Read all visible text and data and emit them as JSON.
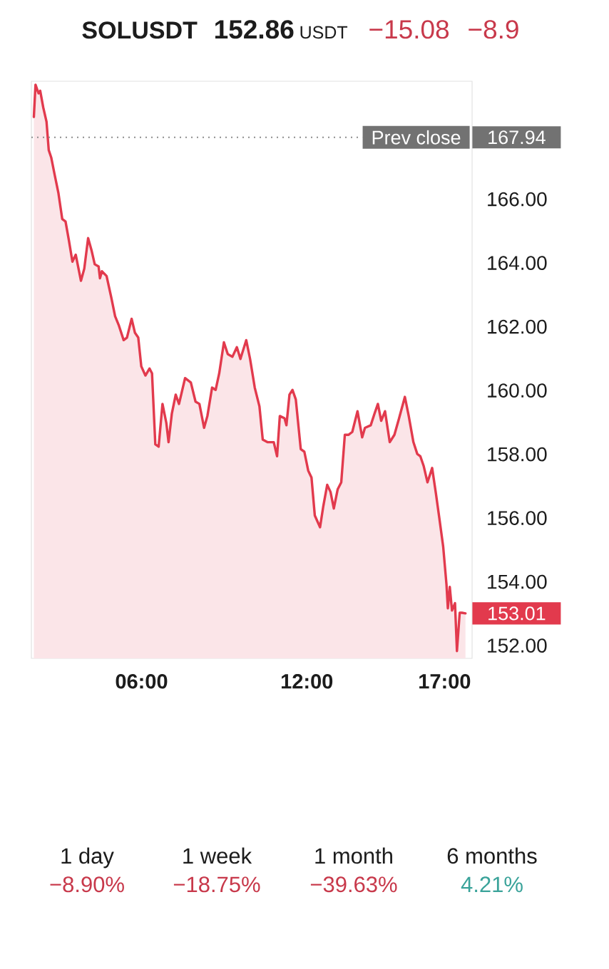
{
  "chart_data": {
    "type": "area",
    "title": "SOLUSDT",
    "x": [
      2.09,
      2.15,
      2.26,
      2.32,
      2.43,
      2.55,
      2.63,
      2.72,
      2.84,
      2.98,
      3.12,
      3.24,
      3.36,
      3.49,
      3.61,
      3.8,
      3.92,
      4.06,
      4.18,
      4.3,
      4.44,
      4.49,
      4.56,
      4.73,
      4.9,
      5.04,
      5.18,
      5.35,
      5.47,
      5.64,
      5.76,
      5.88,
      5.99,
      6.14,
      6.29,
      6.38,
      6.5,
      6.62,
      6.76,
      6.9,
      6.98,
      7.1,
      7.24,
      7.36,
      7.58,
      7.79,
      7.96,
      8.1,
      8.27,
      8.39,
      8.56,
      8.69,
      8.82,
      8.99,
      9.13,
      9.3,
      9.46,
      9.59,
      9.8,
      9.94,
      10.11,
      10.28,
      10.4,
      10.57,
      10.8,
      10.92,
      11.02,
      11.19,
      11.26,
      11.37,
      11.48,
      11.6,
      11.78,
      11.91,
      12.05,
      12.17,
      12.29,
      12.48,
      12.6,
      12.74,
      12.86,
      12.98,
      13.12,
      13.25,
      13.38,
      13.51,
      13.65,
      13.84,
      14.01,
      14.11,
      14.32,
      14.46,
      14.58,
      14.7,
      14.84,
      15.01,
      15.18,
      15.35,
      15.56,
      15.7,
      15.87,
      16.01,
      16.12,
      16.24,
      16.38,
      16.55,
      16.69,
      16.81,
      16.95,
      17.07,
      17.12,
      17.19,
      17.27,
      17.38,
      17.45,
      17.55,
      17.63,
      17.76
    ],
    "values": [
      168.58,
      169.59,
      169.32,
      169.4,
      168.88,
      168.43,
      167.54,
      167.31,
      166.79,
      166.2,
      165.38,
      165.3,
      164.72,
      164.04,
      164.26,
      163.44,
      163.82,
      164.78,
      164.41,
      163.96,
      163.89,
      163.52,
      163.74,
      163.59,
      162.92,
      162.33,
      162.03,
      161.58,
      161.66,
      162.25,
      161.81,
      161.66,
      160.76,
      160.47,
      160.69,
      160.54,
      158.31,
      158.24,
      159.58,
      158.98,
      158.38,
      159.28,
      159.87,
      159.58,
      160.39,
      160.25,
      159.65,
      159.58,
      158.83,
      159.2,
      160.09,
      160.02,
      160.54,
      161.51,
      161.14,
      161.06,
      161.36,
      160.99,
      161.58,
      160.99,
      160.09,
      159.5,
      158.46,
      158.38,
      158.38,
      157.94,
      159.2,
      159.13,
      158.91,
      159.87,
      160.02,
      159.72,
      158.16,
      158.08,
      157.49,
      157.27,
      156.08,
      155.71,
      156.38,
      157.04,
      156.82,
      156.3,
      156.9,
      157.12,
      158.61,
      158.61,
      158.7,
      159.35,
      158.53,
      158.83,
      158.91,
      159.28,
      159.58,
      159.05,
      159.35,
      158.38,
      158.61,
      159.13,
      159.8,
      159.2,
      158.38,
      158.01,
      157.94,
      157.64,
      157.12,
      157.57,
      156.75,
      156.0,
      155.11,
      153.92,
      153.17,
      153.84,
      153.1,
      153.33,
      151.83,
      153.03,
      153.03,
      153.01
    ],
    "color": "#e23a4d",
    "xlim": [
      2,
      18
    ],
    "ylim": [
      151.6,
      169.7
    ],
    "xticks": [
      {
        "value": 6,
        "label": "06:00"
      },
      {
        "value": 12,
        "label": "12:00"
      },
      {
        "value": 17,
        "label": "17:00"
      }
    ],
    "yticks": [
      {
        "value": 152,
        "label": "152.00"
      },
      {
        "value": 154,
        "label": "154.00"
      },
      {
        "value": 156,
        "label": "156.00"
      },
      {
        "value": 158,
        "label": "158.00"
      },
      {
        "value": 160,
        "label": "160.00"
      },
      {
        "value": 162,
        "label": "162.00"
      },
      {
        "value": 164,
        "label": "164.00"
      },
      {
        "value": 166,
        "label": "166.00"
      }
    ],
    "ref_lines": [
      {
        "axis": "y",
        "value": 167.94,
        "label": "Prev close",
        "line_style": "dotted",
        "color": "#8e8e8e"
      }
    ],
    "annotations": [
      "152.86",
      "USDT",
      "−15.08",
      "−8.9",
      "1 day",
      "−8.90%",
      "1 week",
      "−18.75%",
      "1 month",
      "−39.63%",
      "6 months",
      "4.21%",
      "153.01",
      "167.94"
    ]
  }
}
